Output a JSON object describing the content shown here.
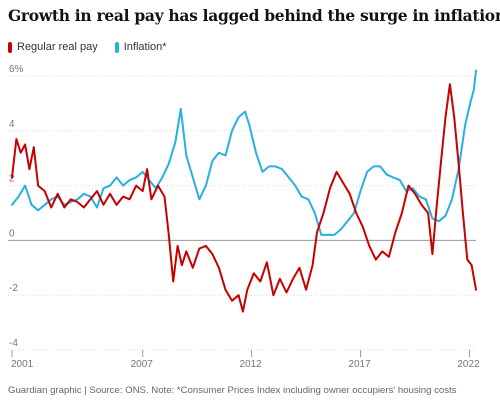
{
  "title": "Growth in real pay has lagged behind the surge in inflation",
  "footer": "Guardian graphic | Source: ONS. Note: *Consumer Prices Index including owner occupiers' housing costs",
  "colors": {
    "pay": "#c70000",
    "inflation": "#27b0e0",
    "grid": "#dcdcdc",
    "zero": "#999999"
  },
  "chart_data": {
    "type": "line",
    "title": "Growth in real pay has lagged behind the surge in inflation",
    "xlabel": "",
    "ylabel": "",
    "xlim": [
      2001,
      2022.3
    ],
    "ylim": [
      -4,
      6
    ],
    "y_ticks": [
      6,
      4,
      2,
      0,
      -2,
      -4
    ],
    "y_tick_labels": [
      "6%",
      "4",
      "2",
      "0",
      "-2",
      "-4"
    ],
    "x_ticks": [
      2001,
      2007,
      2012,
      2017,
      2022
    ],
    "x_tick_labels": [
      "2001",
      "2007",
      "2012",
      "2017",
      "2022"
    ],
    "grid": true,
    "legend_position": "top-left",
    "series": [
      {
        "name": "Regular real pay",
        "color": "#c70000",
        "x": [
          2001.0,
          2001.2,
          2001.4,
          2001.6,
          2001.8,
          2002.0,
          2002.2,
          2002.5,
          2002.8,
          2003.1,
          2003.4,
          2003.7,
          2004.0,
          2004.3,
          2004.6,
          2004.9,
          2005.2,
          2005.5,
          2005.8,
          2006.1,
          2006.4,
          2006.7,
          2007.0,
          2007.2,
          2007.4,
          2007.7,
          2008.0,
          2008.2,
          2008.4,
          2008.6,
          2008.8,
          2009.0,
          2009.3,
          2009.6,
          2009.9,
          2010.2,
          2010.5,
          2010.8,
          2011.1,
          2011.4,
          2011.6,
          2011.8,
          2012.1,
          2012.4,
          2012.7,
          2013.0,
          2013.3,
          2013.6,
          2013.9,
          2014.2,
          2014.5,
          2014.8,
          2015.0,
          2015.3,
          2015.6,
          2015.9,
          2016.2,
          2016.5,
          2016.8,
          2017.1,
          2017.4,
          2017.7,
          2018.0,
          2018.3,
          2018.6,
          2018.9,
          2019.2,
          2019.5,
          2019.8,
          2020.1,
          2020.3,
          2020.5,
          2020.7,
          2020.9,
          2021.1,
          2021.3,
          2021.5,
          2021.7,
          2021.9,
          2022.1,
          2022.3
        ],
        "values": [
          2.3,
          3.7,
          3.2,
          3.5,
          2.6,
          3.4,
          2.0,
          1.8,
          1.2,
          1.7,
          1.2,
          1.5,
          1.4,
          1.2,
          1.5,
          1.8,
          1.3,
          1.7,
          1.3,
          1.6,
          1.5,
          2.0,
          1.8,
          2.6,
          1.5,
          2.0,
          1.6,
          0.2,
          -1.5,
          -0.2,
          -0.9,
          -0.4,
          -1.0,
          -0.3,
          -0.2,
          -0.5,
          -1.0,
          -1.8,
          -2.2,
          -2.0,
          -2.6,
          -1.8,
          -1.2,
          -1.5,
          -0.8,
          -2.0,
          -1.4,
          -1.9,
          -1.4,
          -1.0,
          -1.8,
          -0.9,
          0.3,
          1.0,
          1.9,
          2.5,
          2.1,
          1.7,
          1.0,
          0.5,
          -0.2,
          -0.7,
          -0.4,
          -0.6,
          0.3,
          1.0,
          2.0,
          1.7,
          1.3,
          1.0,
          -0.5,
          1.3,
          2.9,
          4.5,
          5.7,
          4.5,
          2.8,
          1.0,
          -0.7,
          -0.9,
          -1.8
        ]
      },
      {
        "name": "Inflation*",
        "color": "#27b0e0",
        "x": [
          2001.0,
          2001.3,
          2001.6,
          2001.9,
          2002.2,
          2002.5,
          2002.8,
          2003.1,
          2003.4,
          2003.7,
          2004.0,
          2004.3,
          2004.6,
          2004.9,
          2005.2,
          2005.5,
          2005.8,
          2006.1,
          2006.4,
          2006.7,
          2007.0,
          2007.3,
          2007.6,
          2007.9,
          2008.2,
          2008.5,
          2008.75,
          2009.0,
          2009.3,
          2009.6,
          2009.9,
          2010.2,
          2010.5,
          2010.8,
          2011.1,
          2011.4,
          2011.7,
          2011.9,
          2012.2,
          2012.5,
          2012.8,
          2013.1,
          2013.4,
          2013.7,
          2014.0,
          2014.3,
          2014.6,
          2014.9,
          2015.2,
          2015.5,
          2015.8,
          2016.1,
          2016.4,
          2016.7,
          2017.0,
          2017.3,
          2017.6,
          2017.9,
          2018.2,
          2018.5,
          2018.8,
          2019.1,
          2019.4,
          2019.7,
          2020.0,
          2020.3,
          2020.6,
          2020.9,
          2021.2,
          2021.5,
          2021.8,
          2022.0,
          2022.2,
          2022.3
        ],
        "values": [
          1.3,
          1.6,
          2.0,
          1.3,
          1.1,
          1.3,
          1.5,
          1.6,
          1.3,
          1.4,
          1.5,
          1.7,
          1.6,
          1.2,
          1.9,
          2.0,
          2.3,
          2.0,
          2.2,
          2.3,
          2.5,
          2.2,
          1.9,
          2.3,
          2.8,
          3.6,
          4.8,
          3.1,
          2.3,
          1.5,
          2.0,
          2.9,
          3.2,
          3.1,
          4.0,
          4.5,
          4.7,
          4.2,
          3.2,
          2.5,
          2.7,
          2.7,
          2.6,
          2.3,
          2.0,
          1.6,
          1.5,
          1.0,
          0.2,
          0.2,
          0.2,
          0.4,
          0.7,
          1.0,
          1.8,
          2.5,
          2.7,
          2.7,
          2.4,
          2.3,
          2.2,
          1.8,
          1.9,
          1.6,
          1.5,
          0.8,
          0.7,
          0.9,
          1.5,
          2.6,
          4.2,
          4.9,
          5.5,
          6.2
        ]
      }
    ]
  }
}
